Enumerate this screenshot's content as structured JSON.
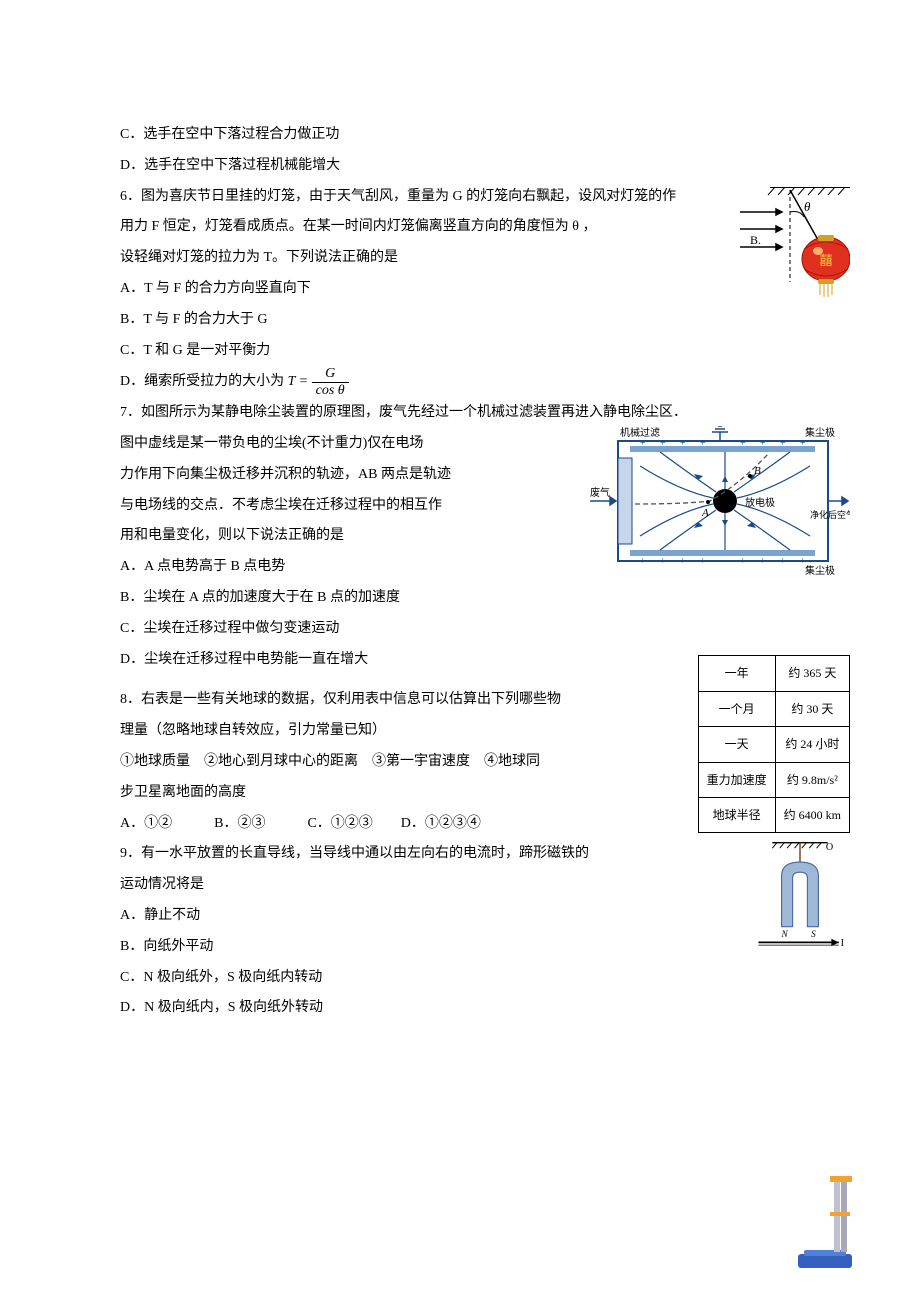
{
  "q5": {
    "opt_c": "C．选手在空中下落过程合力做正功",
    "opt_d": "D．选手在空中下落过程机械能增大"
  },
  "q6": {
    "stem1": "6．图为喜庆节日里挂的灯笼，由于天气刮风，重量为 G 的灯笼向右飘起，设风对灯笼的作",
    "stem2": "用力 F 恒定，灯笼看成质点。在某一时间内灯笼偏离竖直方向的角度恒为 θ ，",
    "stem3": "设轻绳对灯笼的拉力为 T。下列说法正确的是",
    "opt_a": "A．T 与 F 的合力方向竖直向下",
    "opt_b": "B．T 与 F 的合力大于 G",
    "opt_c": "C．T 和 G 是一对平衡力",
    "opt_d_pre": "D．绳索所受拉力的大小为",
    "opt_d_eq_lhs": "T =",
    "opt_d_num": "G",
    "opt_d_den": "cos θ",
    "figure": {
      "theta_label": "θ",
      "lantern_char": "囍",
      "lantern_color": "#e03020",
      "rope_color": "#000000",
      "hatching_color": "#000000",
      "arrow_color": "#000000",
      "b_label": "B."
    }
  },
  "q7": {
    "stem1": "7．如图所示为某静电除尘装置的原理图，废气先经过一个机械过滤装置再进入静电除尘区．",
    "stem2": "图中虚线是某一带负电的尘埃(不计重力)仅在电场",
    "stem3": "力作用下向集尘极迁移并沉积的轨迹，AB 两点是轨迹",
    "stem4": "与电场线的交点．不考虑尘埃在迁移过程中的相互作",
    "stem5": "用和电量变化，则以下说法正确的是",
    "opt_a": "A．A 点电势高于 B 点电势",
    "opt_b": "B．尘埃在 A 点的加速度大于在 B 点的加速度",
    "opt_c": "C．尘埃在迁移过程中做匀变速运动",
    "opt_d": "D．尘埃在迁移过程中电势能一直在增大",
    "figure": {
      "label_filter": "机械过滤",
      "label_collector": "集尘极",
      "label_waste": "废气",
      "label_electrode": "放电极",
      "label_clean": "净化后空气",
      "label_a": "A",
      "label_b": "B",
      "border_color": "#1a4a8a",
      "plate_color": "#7aa3d0",
      "fieldline_color": "#1a4a8a",
      "trajectory_color": "#555555",
      "text_color": "#000000"
    }
  },
  "q8": {
    "stem1": "8．右表是一些有关地球的数据，仅利用表中信息可以估算出下列哪些物",
    "stem2": "理量（忽略地球自转效应，引力常量已知）",
    "stem3": "①地球质量　②地心到月球中心的距离　③第一宇宙速度　④地球同",
    "stem4": "步卫星离地面的高度",
    "opts": "A．①②　　　B．②③　　　C．①②③　　D．①②③④",
    "table": {
      "rows": [
        [
          "一年",
          "约 365 天"
        ],
        [
          "一个月",
          "约 30 天"
        ],
        [
          "一天",
          "约 24 小时"
        ],
        [
          "重力加速度",
          "约 9.8m/s²"
        ],
        [
          "地球半径",
          "约 6400 km"
        ]
      ]
    }
  },
  "q9": {
    "stem1": "9．有一水平放置的长直导线，当导线中通以由左向右的电流时，蹄形磁铁的",
    "stem2": "运动情况将是",
    "opt_a": "A．静止不动",
    "opt_b": "B．向纸外平动",
    "opt_c": "C．N 极向纸外，S 极向纸内转动",
    "opt_d": "D．N 极向纸内，S 极向纸外转动",
    "figure": {
      "label_o": "O",
      "label_n": "N",
      "label_s": "S",
      "label_i": "I",
      "magnet_color": "#9fb8d8",
      "rope_color": "#604020",
      "wire_color": "#000000"
    }
  },
  "scale_figure": {
    "platform_color": "#3560c0",
    "column_color": "#c0c0d0",
    "bar_color": "#f5a030"
  }
}
